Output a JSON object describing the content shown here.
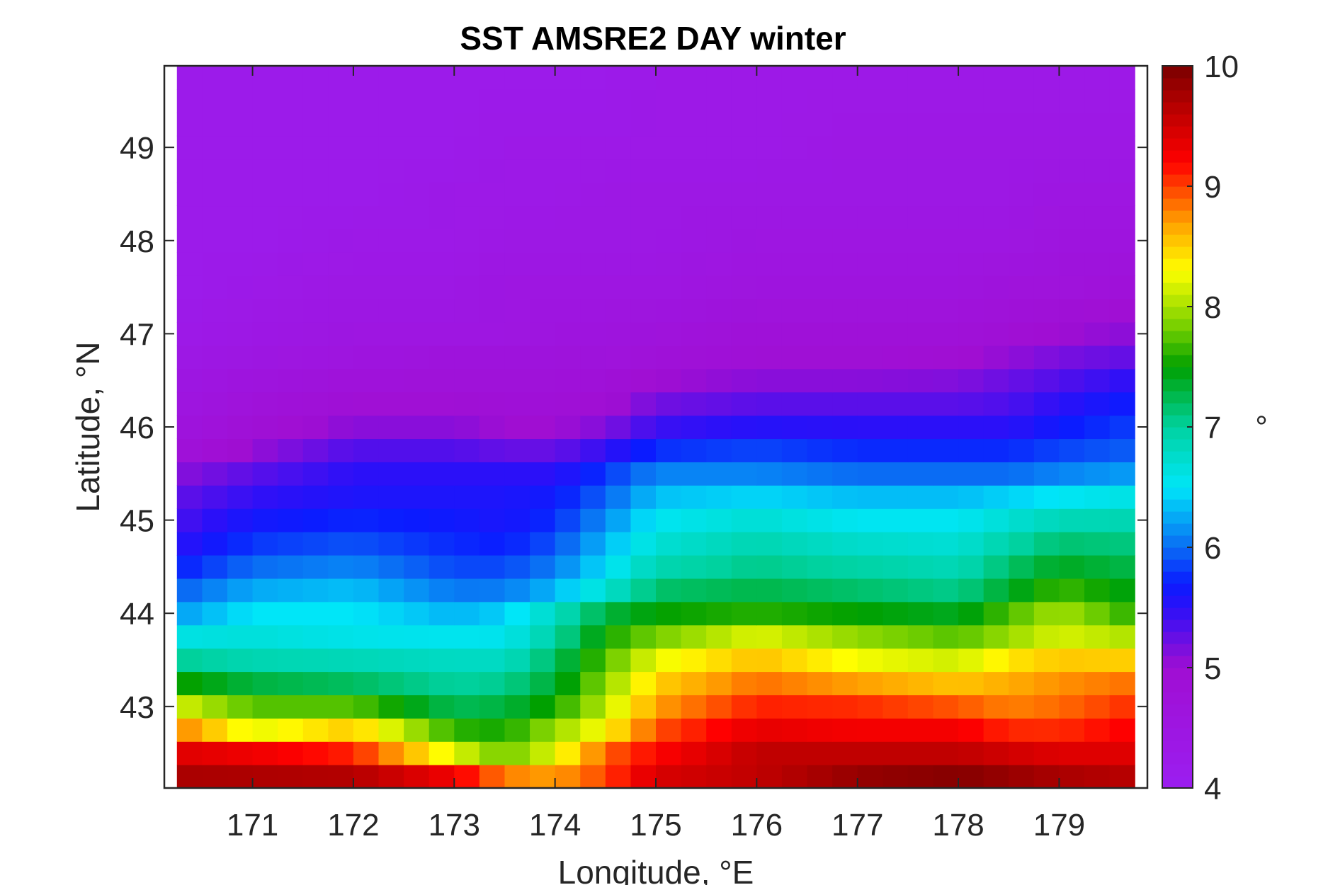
{
  "chart_data": {
    "type": "heatmap",
    "title": "SST AMSRE2 DAY winter",
    "xlabel": "Longitude, °E",
    "ylabel": "Latitude, °N",
    "colorbar_label": "°",
    "x_ticks": [
      "171",
      "172",
      "173",
      "174",
      "175",
      "176",
      "177",
      "178",
      "179"
    ],
    "y_ticks": [
      "43",
      "44",
      "45",
      "46",
      "47",
      "48",
      "49"
    ],
    "colorbar_ticks": [
      "4",
      "5",
      "6",
      "7",
      "8",
      "9",
      "10"
    ],
    "xlim": [
      170.125,
      179.875
    ],
    "ylim": [
      42.125,
      49.875
    ],
    "clim": [
      4,
      10
    ],
    "colormap": "purple-blue-cyan-green-yellow-red-darkred",
    "grid": false,
    "x": [
      170.375,
      170.625,
      170.875,
      171.125,
      171.375,
      171.625,
      171.875,
      172.125,
      172.375,
      172.625,
      172.875,
      173.125,
      173.375,
      173.625,
      173.875,
      174.125,
      174.375,
      174.625,
      174.875,
      175.125,
      175.375,
      175.625,
      175.875,
      176.125,
      176.375,
      176.625,
      176.875,
      177.125,
      177.375,
      177.625,
      177.875,
      178.125,
      178.375,
      178.625,
      178.875,
      179.125,
      179.375,
      179.625
    ],
    "y": [
      42.25,
      42.5,
      42.75,
      43.0,
      43.25,
      43.5,
      43.75,
      44.0,
      44.25,
      44.5,
      44.75,
      45.0,
      45.25,
      45.5,
      45.75,
      46.0,
      46.25,
      46.5,
      46.75,
      47.0,
      47.25,
      47.5,
      47.75,
      48.0,
      48.25,
      48.5,
      48.75,
      49.0,
      49.25,
      49.5,
      49.75
    ],
    "lon_anchors": [
      170.25,
      171.0,
      172.0,
      173.0,
      173.5,
      174.0,
      174.5,
      175.0,
      176.0,
      177.0,
      178.0,
      178.5,
      179.0,
      179.75
    ],
    "profiles": [
      {
        "lat": 42.2,
        "values": [
          9.8,
          9.8,
          9.8,
          9.5,
          9.0,
          8.8,
          9.0,
          9.5,
          9.6,
          9.9,
          10.0,
          9.9,
          9.8,
          9.7
        ]
      },
      {
        "lat": 42.5,
        "values": [
          9.4,
          9.3,
          9.1,
          8.2,
          7.8,
          8.2,
          8.9,
          9.2,
          9.6,
          9.6,
          9.6,
          9.5,
          9.4,
          9.4
        ]
      },
      {
        "lat": 42.8,
        "values": [
          8.7,
          8.0,
          8.4,
          7.5,
          7.5,
          7.9,
          8.2,
          8.9,
          9.3,
          9.2,
          9.2,
          9.0,
          9.0,
          9.2
        ]
      },
      {
        "lat": 43.1,
        "values": [
          7.9,
          7.6,
          7.4,
          7.1,
          7.2,
          7.4,
          8.0,
          8.6,
          9.0,
          9.0,
          8.8,
          8.7,
          8.8,
          9.0
        ]
      },
      {
        "lat": 43.4,
        "values": [
          7.2,
          7.0,
          7.0,
          6.9,
          6.9,
          7.3,
          7.8,
          8.4,
          8.7,
          8.4,
          8.3,
          8.6,
          8.7,
          8.7
        ]
      },
      {
        "lat": 43.7,
        "values": [
          6.7,
          6.7,
          6.6,
          6.6,
          6.6,
          7.0,
          7.6,
          7.9,
          8.3,
          8.0,
          7.8,
          8.0,
          8.2,
          8.1
        ]
      },
      {
        "lat": 44.0,
        "values": [
          6.2,
          6.5,
          6.5,
          6.3,
          6.4,
          6.8,
          7.3,
          7.5,
          7.6,
          7.5,
          7.4,
          7.7,
          8.0,
          7.6
        ]
      },
      {
        "lat": 44.3,
        "values": [
          5.9,
          6.2,
          6.3,
          6.0,
          6.0,
          6.2,
          6.6,
          7.1,
          7.2,
          7.1,
          7.0,
          7.3,
          7.6,
          7.4
        ]
      },
      {
        "lat": 44.6,
        "values": [
          5.6,
          5.9,
          6.0,
          5.8,
          5.8,
          6.0,
          6.4,
          6.8,
          7.0,
          6.9,
          6.8,
          7.1,
          7.3,
          7.2
        ]
      },
      {
        "lat": 44.9,
        "values": [
          5.4,
          5.7,
          5.8,
          5.7,
          5.6,
          5.8,
          6.2,
          6.6,
          6.8,
          6.6,
          6.6,
          6.8,
          7.0,
          7.0
        ]
      },
      {
        "lat": 45.2,
        "values": [
          5.3,
          5.5,
          5.6,
          5.6,
          5.6,
          5.7,
          6.0,
          6.4,
          6.5,
          6.4,
          6.4,
          6.5,
          6.6,
          6.7
        ]
      },
      {
        "lat": 45.5,
        "values": [
          5.1,
          5.3,
          5.5,
          5.5,
          5.5,
          5.5,
          5.8,
          6.1,
          6.1,
          6.0,
          6.0,
          6.0,
          6.1,
          6.2
        ]
      },
      {
        "lat": 45.8,
        "values": [
          4.7,
          5.0,
          5.3,
          5.3,
          5.2,
          5.2,
          5.4,
          5.7,
          5.8,
          5.7,
          5.7,
          5.7,
          5.8,
          5.9
        ]
      },
      {
        "lat": 46.1,
        "values": [
          4.6,
          4.8,
          5.0,
          5.0,
          4.9,
          4.9,
          5.0,
          5.3,
          5.4,
          5.4,
          5.4,
          5.4,
          5.6,
          5.8
        ]
      },
      {
        "lat": 46.4,
        "values": [
          4.5,
          4.7,
          4.8,
          4.8,
          4.8,
          4.8,
          4.9,
          5.1,
          5.2,
          5.2,
          5.2,
          5.3,
          5.4,
          5.6
        ]
      },
      {
        "lat": 46.7,
        "values": [
          4.4,
          4.5,
          4.6,
          4.7,
          4.7,
          4.7,
          4.7,
          4.8,
          4.9,
          4.9,
          5.0,
          5.1,
          5.2,
          5.3
        ]
      },
      {
        "lat": 47.0,
        "values": [
          4.3,
          4.4,
          4.5,
          4.5,
          4.5,
          4.6,
          4.6,
          4.7,
          4.8,
          4.8,
          4.8,
          4.9,
          5.0,
          5.1
        ]
      },
      {
        "lat": 47.5,
        "values": [
          4.2,
          4.3,
          4.4,
          4.4,
          4.5,
          4.5,
          4.5,
          4.5,
          4.6,
          4.6,
          4.6,
          4.7,
          4.7,
          4.8
        ]
      },
      {
        "lat": 48.0,
        "values": [
          4.2,
          4.2,
          4.3,
          4.3,
          4.4,
          4.4,
          4.4,
          4.4,
          4.5,
          4.5,
          4.5,
          4.5,
          4.6,
          4.6
        ]
      },
      {
        "lat": 48.5,
        "values": [
          4.2,
          4.2,
          4.2,
          4.3,
          4.3,
          4.3,
          4.4,
          4.4,
          4.4,
          4.4,
          4.4,
          4.4,
          4.5,
          4.5
        ]
      },
      {
        "lat": 49.0,
        "values": [
          4.2,
          4.2,
          4.2,
          4.2,
          4.3,
          4.3,
          4.3,
          4.3,
          4.3,
          4.4,
          4.4,
          4.4,
          4.4,
          4.4
        ]
      },
      {
        "lat": 49.8,
        "values": [
          4.2,
          4.2,
          4.2,
          4.2,
          4.2,
          4.2,
          4.2,
          4.3,
          4.3,
          4.3,
          4.3,
          4.3,
          4.3,
          4.3
        ]
      }
    ],
    "colormap_stops": [
      {
        "v": 4.0,
        "color": "#9b1ef0"
      },
      {
        "v": 5.0,
        "color": "#a00ed2"
      },
      {
        "v": 5.5,
        "color": "#2b10f8"
      },
      {
        "v": 5.7,
        "color": "#0a1cff"
      },
      {
        "v": 6.0,
        "color": "#0a6cf4"
      },
      {
        "v": 6.5,
        "color": "#00e6f8"
      },
      {
        "v": 7.0,
        "color": "#00d2a0"
      },
      {
        "v": 7.5,
        "color": "#00a000"
      },
      {
        "v": 7.8,
        "color": "#6ccc00"
      },
      {
        "v": 8.3,
        "color": "#ffff00"
      },
      {
        "v": 8.7,
        "color": "#ffa000"
      },
      {
        "v": 9.2,
        "color": "#ff0000"
      },
      {
        "v": 9.7,
        "color": "#b00000"
      },
      {
        "v": 10.0,
        "color": "#7a0000"
      }
    ]
  }
}
